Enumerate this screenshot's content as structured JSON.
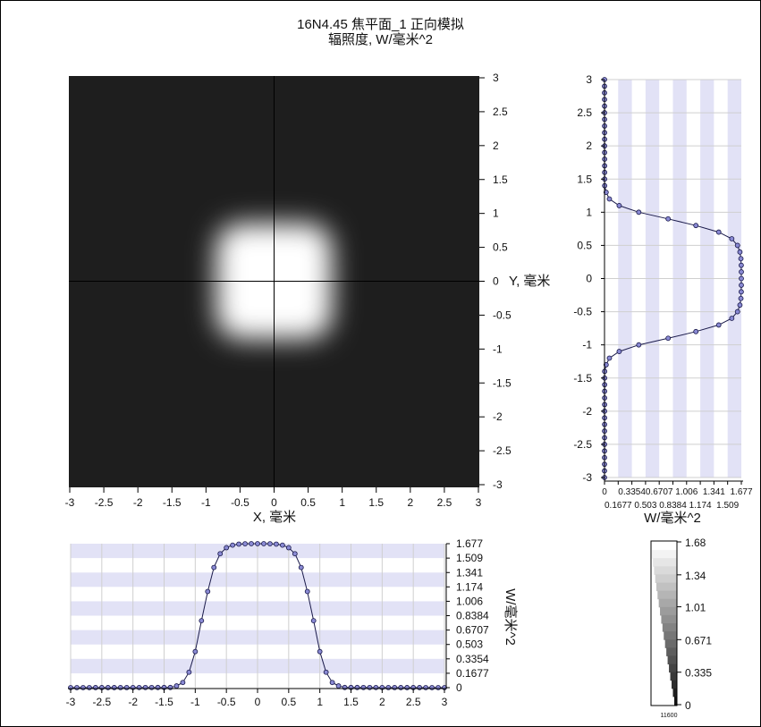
{
  "header": {
    "title": "16N4.45 焦平面_1 正向模拟",
    "subtitle": "辐照度, W/毫米^2"
  },
  "chart_data": [
    {
      "type": "heatmap",
      "xlabel": "X, 毫米",
      "ylabel": "Y, 毫米",
      "xlim": [
        -3,
        3
      ],
      "ylim": [
        -3,
        3
      ],
      "x_ticks": [
        "-3",
        "-2.5",
        "-2",
        "-1.5",
        "-1",
        "-0.5",
        "0",
        "0.5",
        "1",
        "1.5",
        "2",
        "2.5",
        "3"
      ],
      "y_ticks": [
        "3",
        "2.5",
        "2",
        "1.5",
        "1",
        "0.5",
        "0",
        "-0.5",
        "-1",
        "-1.5",
        "-2",
        "-2.5",
        "-3"
      ],
      "peak_value": 1.677,
      "spot_half_width": 0.85,
      "spot_center": [
        0,
        0
      ],
      "background_color": "#1e1e1e",
      "colormap": "grayscale"
    },
    {
      "type": "line",
      "orientation": "vertical",
      "ylim": [
        -3,
        3
      ],
      "xlim": [
        0,
        1.677
      ],
      "xlabel": "W/毫米^2",
      "y_ticks": [
        "3",
        "2.5",
        "2",
        "1.5",
        "1",
        "0.5",
        "0",
        "-0.5",
        "-1",
        "-1.5",
        "-2",
        "-2.5",
        "-3"
      ],
      "x_ticks_row1": [
        "0",
        "0.3354",
        "0.6707",
        "1.006",
        "1.341",
        "1.677"
      ],
      "x_ticks_row2": [
        "0.1677",
        "0.503",
        "0.8384",
        "1.174",
        "1.509"
      ],
      "series": [
        {
          "y": [
            -3,
            -1.4,
            -1.3,
            -1.2,
            -1.1,
            -1.0,
            -0.9,
            -0.8,
            -0.7,
            -0.6,
            -0.5,
            -0.4,
            -0.3,
            -0.2,
            -0.1,
            0,
            0.1,
            0.2,
            0.3,
            0.4,
            0.5,
            0.6,
            0.7,
            0.8,
            0.9,
            1.0,
            1.1,
            1.2,
            1.3,
            1.4,
            3
          ],
          "values": [
            0,
            0.002,
            0.02,
            0.06,
            0.18,
            0.42,
            0.78,
            1.12,
            1.4,
            1.56,
            1.63,
            1.66,
            1.672,
            1.676,
            1.677,
            1.677,
            1.677,
            1.676,
            1.672,
            1.66,
            1.63,
            1.56,
            1.4,
            1.12,
            0.78,
            0.42,
            0.18,
            0.06,
            0.02,
            0.002,
            0
          ]
        }
      ]
    },
    {
      "type": "line",
      "xlim": [
        -3,
        3
      ],
      "ylim": [
        0,
        1.677
      ],
      "ylabel": "W/毫米^2",
      "x_ticks": [
        "-3",
        "-2.5",
        "-2",
        "-1.5",
        "-1",
        "-0.5",
        "0",
        "0.5",
        "1",
        "1.5",
        "2",
        "2.5",
        "3"
      ],
      "y_ticks": [
        "1.677",
        "1.509",
        "1.341",
        "1.174",
        "1.006",
        "0.8384",
        "0.6707",
        "0.503",
        "0.3354",
        "0.1677",
        "0"
      ],
      "series": [
        {
          "x": [
            -3,
            -1.4,
            -1.3,
            -1.2,
            -1.1,
            -1.0,
            -0.9,
            -0.8,
            -0.7,
            -0.6,
            -0.5,
            -0.4,
            -0.3,
            -0.2,
            -0.1,
            0,
            0.1,
            0.2,
            0.3,
            0.4,
            0.5,
            0.6,
            0.7,
            0.8,
            0.9,
            1.0,
            1.1,
            1.2,
            1.3,
            1.4,
            3
          ],
          "values": [
            0,
            0.002,
            0.02,
            0.06,
            0.18,
            0.42,
            0.78,
            1.12,
            1.4,
            1.56,
            1.63,
            1.66,
            1.672,
            1.676,
            1.677,
            1.677,
            1.677,
            1.676,
            1.672,
            1.66,
            1.63,
            1.56,
            1.4,
            1.12,
            0.78,
            0.42,
            0.18,
            0.06,
            0.02,
            0.002,
            0
          ]
        }
      ]
    },
    {
      "type": "heatmap",
      "role": "colorbar",
      "ticks": [
        "1.68",
        "1.34",
        "1.01",
        "0.671",
        "0.335",
        "0"
      ],
      "range": [
        0,
        1.68
      ],
      "footer_label": "11600"
    }
  ]
}
